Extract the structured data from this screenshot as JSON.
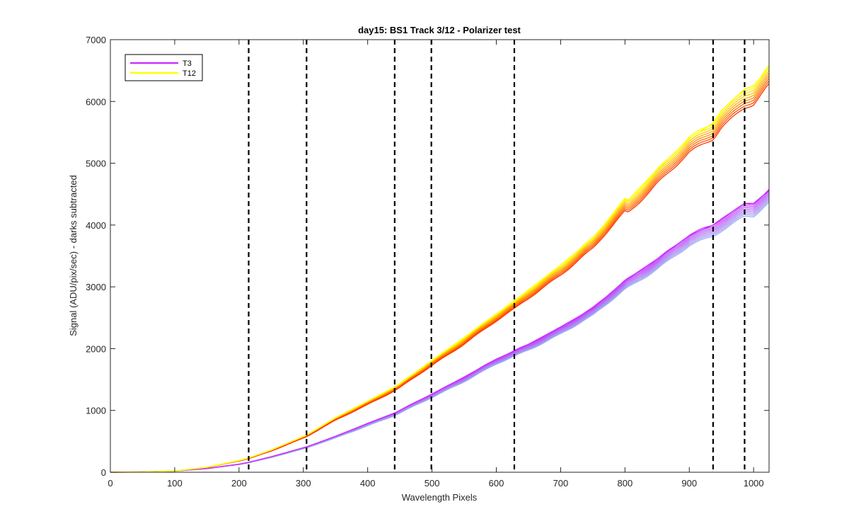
{
  "chart_data": {
    "type": "line",
    "title": "day15: BS1  Track 3/12 - Polarizer test",
    "xlabel": "Wavelength Pixels",
    "ylabel": "Signal (ADU/pix/sec) - darks subtracted",
    "xlim": [
      0,
      1024
    ],
    "ylim": [
      0,
      7000
    ],
    "xticks": [
      0,
      100,
      200,
      300,
      400,
      500,
      600,
      700,
      800,
      900,
      1000
    ],
    "yticks": [
      0,
      1000,
      2000,
      3000,
      4000,
      5000,
      6000,
      7000
    ],
    "grid": false,
    "legend_position": "top-left",
    "vlines": [
      215,
      305,
      442,
      499,
      628,
      937,
      986
    ],
    "series": [
      {
        "name": "T3",
        "color": "#cc33ff",
        "band_colors": [
          "#cc33ff",
          "#99aaee"
        ],
        "x": [
          0,
          50,
          100,
          150,
          200,
          215,
          250,
          305,
          350,
          400,
          442,
          450,
          499,
          550,
          600,
          628,
          650,
          700,
          750,
          800,
          850,
          900,
          937,
          950,
          986,
          1000,
          1024
        ],
        "y": [
          0,
          5,
          20,
          60,
          130,
          160,
          250,
          410,
          580,
          790,
          960,
          1000,
          1260,
          1540,
          1830,
          1960,
          2070,
          2350,
          2650,
          3100,
          3450,
          3830,
          4000,
          4100,
          4350,
          4350,
          4560
        ]
      },
      {
        "name": "T12",
        "color": "#ffff00",
        "band_colors": [
          "#ffff00",
          "#ff3300"
        ],
        "x": [
          0,
          50,
          100,
          150,
          200,
          215,
          250,
          305,
          350,
          400,
          442,
          450,
          499,
          550,
          600,
          628,
          650,
          700,
          750,
          800,
          805,
          850,
          900,
          937,
          950,
          986,
          1000,
          1024
        ],
        "y": [
          0,
          5,
          20,
          80,
          190,
          230,
          360,
          600,
          880,
          1150,
          1380,
          1430,
          1800,
          2180,
          2560,
          2760,
          2950,
          3350,
          3780,
          4420,
          4400,
          4900,
          5400,
          5650,
          5850,
          6200,
          6250,
          6550
        ]
      }
    ]
  }
}
